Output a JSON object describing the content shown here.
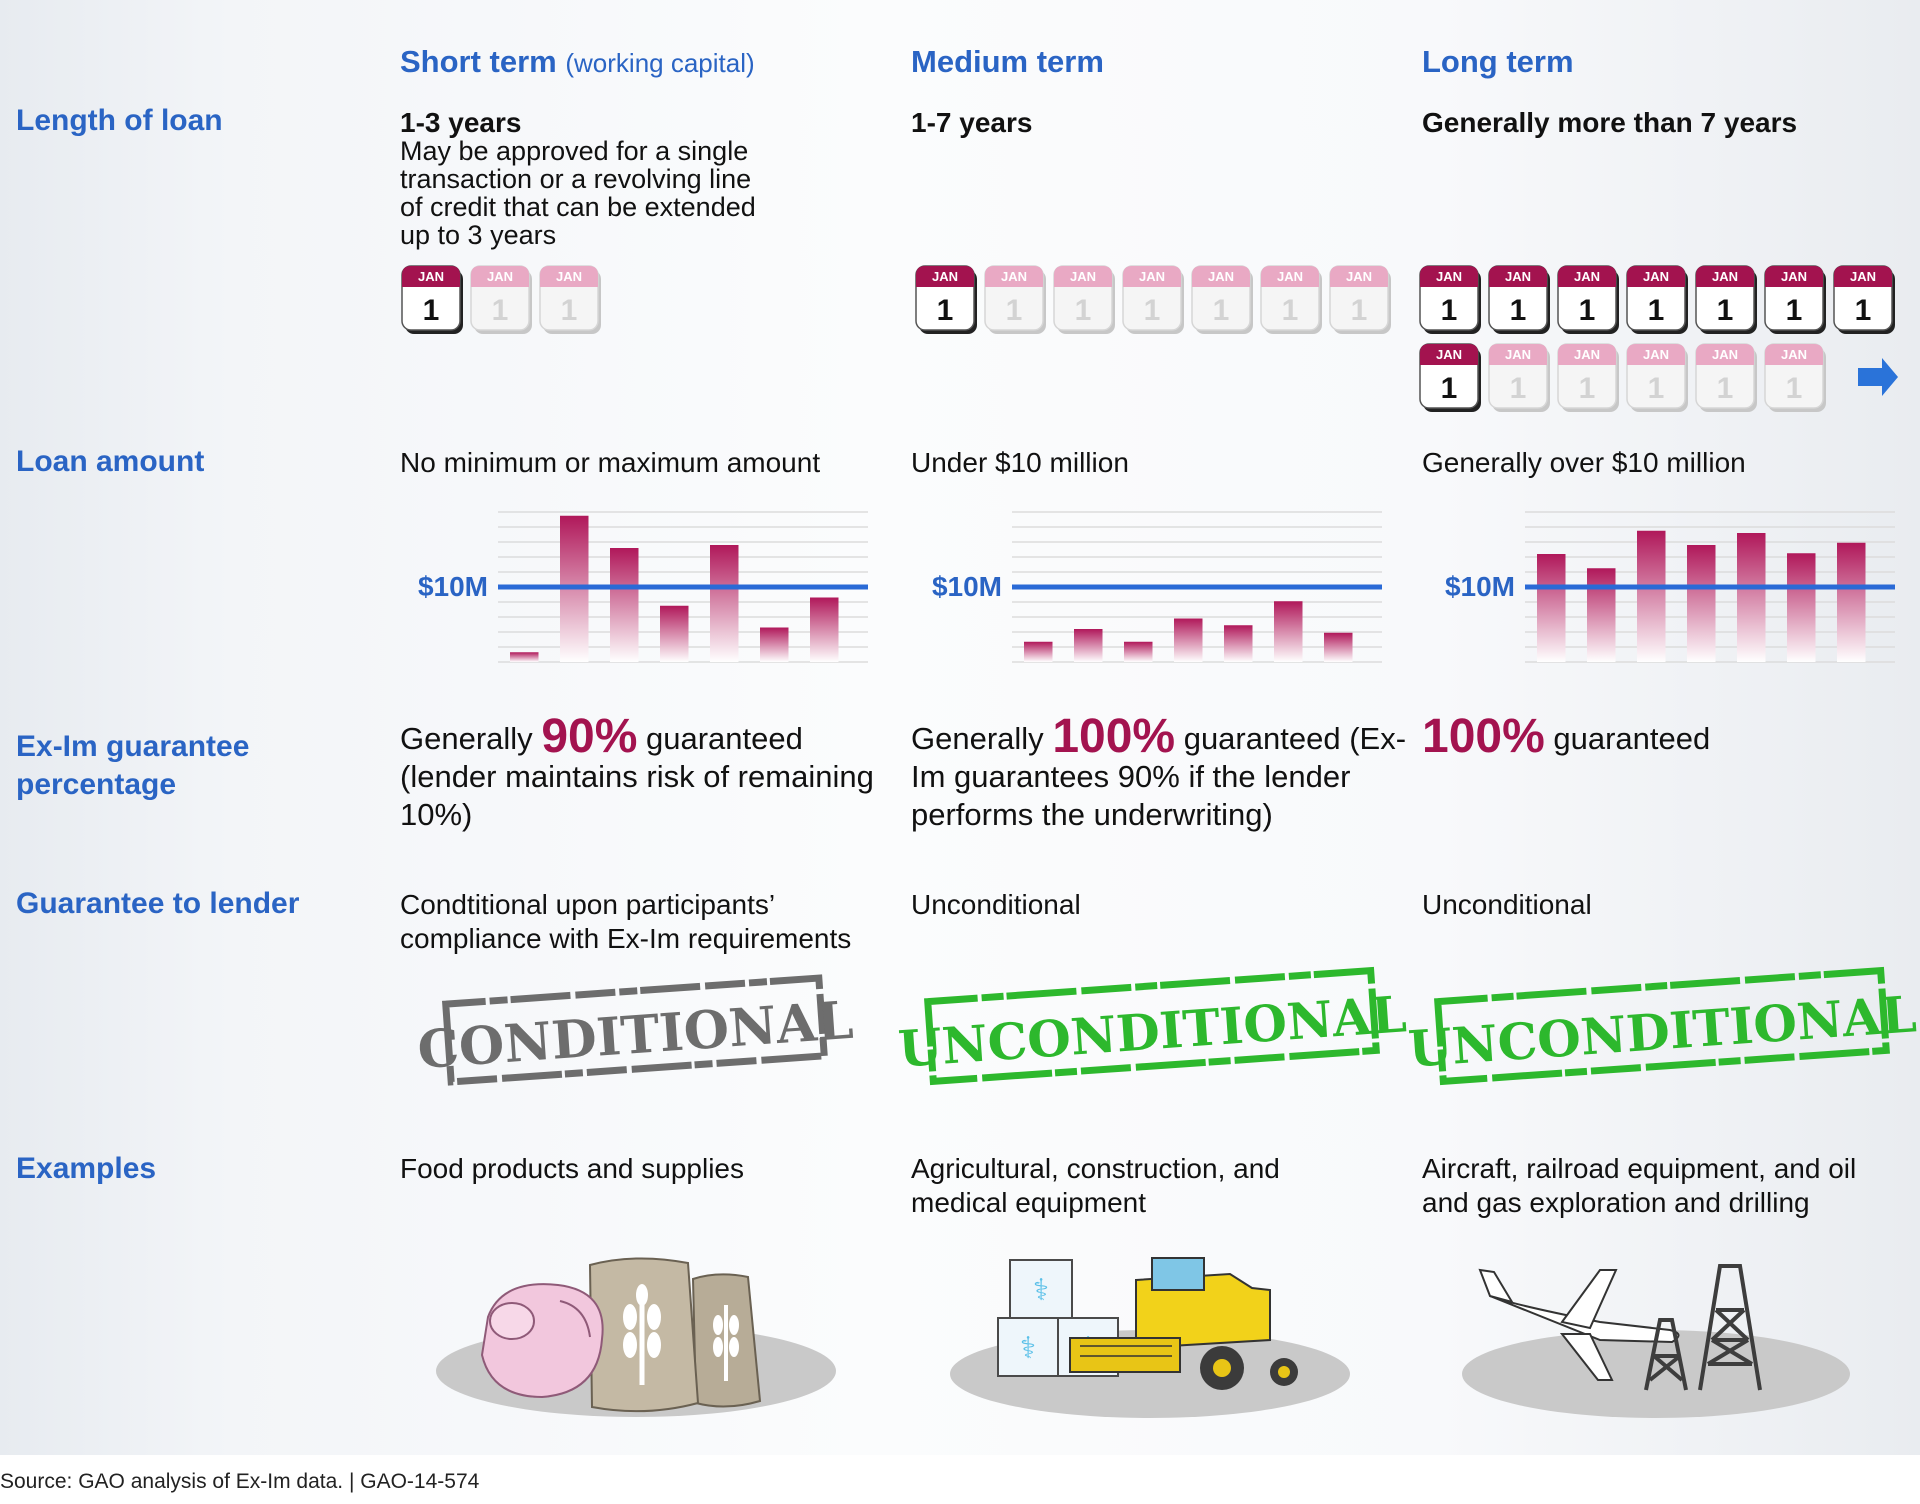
{
  "columns": [
    {
      "title": "Short term",
      "subtitle": "(working capital)"
    },
    {
      "title": "Medium term",
      "subtitle": ""
    },
    {
      "title": "Long term",
      "subtitle": ""
    }
  ],
  "row_labels": {
    "length": "Length of loan",
    "amount": "Loan amount",
    "guarantee_pct": "Ex-Im guarantee percentage",
    "guarantee_lender": "Guarantee to lender",
    "examples": "Examples"
  },
  "length": {
    "short": {
      "years": "1-3 years",
      "desc": [
        "May be approved for a single",
        "transaction or a revolving line",
        "of credit that can be extended",
        "up to 3 years"
      ]
    },
    "medium": {
      "years": "1-7 years"
    },
    "long": {
      "years": "Generally more than 7 years"
    }
  },
  "calendar": {
    "month": "JAN",
    "day": "1"
  },
  "amount": {
    "short": "No minimum or maximum amount",
    "medium": "Under $10 million",
    "long": "Generally over $10 million",
    "threshold_label": "$10M"
  },
  "chart_data": [
    {
      "type": "bar",
      "title": "No minimum or maximum amount",
      "threshold": 10,
      "threshold_label": "$10M",
      "ylim": [
        0,
        20
      ],
      "values": [
        1.3,
        19.5,
        15.2,
        7.5,
        15.6,
        4.6,
        8.6
      ]
    },
    {
      "type": "bar",
      "title": "Under $10 million",
      "threshold": 10,
      "threshold_label": "$10M",
      "ylim": [
        0,
        20
      ],
      "values": [
        2.7,
        4.4,
        2.7,
        5.8,
        4.9,
        8.1,
        3.9
      ]
    },
    {
      "type": "bar",
      "title": "Generally over $10 million",
      "threshold": 10,
      "threshold_label": "$10M",
      "ylim": [
        0,
        20
      ],
      "values": [
        14.4,
        12.5,
        17.5,
        15.6,
        17.2,
        14.5,
        15.9
      ]
    }
  ],
  "guarantee_pct": {
    "short": {
      "pre": "Generally",
      "pct": "90%",
      "post": "guaranteed",
      "rest": "(lender maintains risk of remaining 10%)"
    },
    "medium": {
      "pre": "Generally",
      "pct": "100%",
      "post": "guaranteed",
      "rest": "(Ex-Im guarantees 90% if the lender performs the underwriting)"
    },
    "long": {
      "pct": "100%",
      "post": "guaranteed"
    }
  },
  "guarantee_lender": {
    "short": "Condtitional upon participants’ compliance with Ex-Im requirements",
    "medium": "Unconditional",
    "long": "Unconditional"
  },
  "stamps": {
    "short": "CONDITIONAL",
    "medium": "UNCONDITIONAL",
    "long": "UNCONDITIONAL"
  },
  "colors": {
    "accent": "#2a64c4",
    "highlight": "#a3134f",
    "stamp_gray": "#6d6d6d",
    "stamp_green": "#2db82d"
  },
  "examples": {
    "short": "Food products and supplies",
    "medium": "Agricultural, construction, and medical equipment",
    "long": "Aircraft, railroad equipment, and oil and gas exploration and drilling"
  },
  "example_icons": {
    "short": [
      "poultry-icon",
      "grain-sack-icon"
    ],
    "medium": [
      "medical-supply-boxes-icon",
      "combine-harvester-icon"
    ],
    "long": [
      "airplane-icon",
      "oil-derrick-icon"
    ]
  },
  "source": "Source: GAO analysis of Ex-Im data.  |  GAO-14-574"
}
